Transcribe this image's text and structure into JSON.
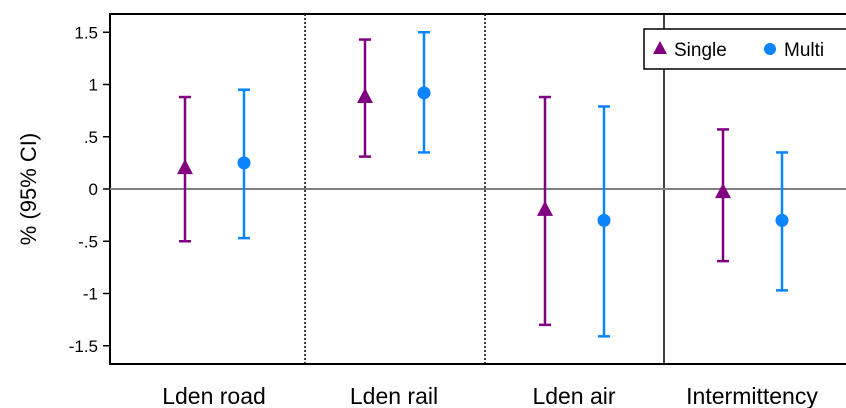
{
  "chart_data": {
    "type": "errorbar",
    "ylabel": "% (95% CI)",
    "ylim": [
      -1.65,
      1.65
    ],
    "yticks": [
      {
        "value": 1.5,
        "label": "1.5"
      },
      {
        "value": 1,
        "label": "1"
      },
      {
        "value": 0.5,
        "label": ".5"
      },
      {
        "value": 0,
        "label": "0"
      },
      {
        "value": -0.5,
        "label": "-.5"
      },
      {
        "value": -1,
        "label": "-1"
      },
      {
        "value": -1.5,
        "label": "-1.5"
      }
    ],
    "categories": [
      "Lden road",
      "Lden rail",
      "Lden air",
      "Intermittency"
    ],
    "reference_line": 0,
    "legend": {
      "position": "top-right"
    },
    "series": [
      {
        "name": "Single",
        "marker": "triangle",
        "color": "#800080",
        "points": [
          {
            "estimate": 0.2,
            "lower": -0.5,
            "upper": 0.88
          },
          {
            "estimate": 0.88,
            "lower": 0.31,
            "upper": 1.43
          },
          {
            "estimate": -0.2,
            "lower": -1.3,
            "upper": 0.88
          },
          {
            "estimate": -0.03,
            "lower": -0.69,
            "upper": 0.57
          }
        ]
      },
      {
        "name": "Multi",
        "marker": "circle",
        "color": "#0a84ff",
        "points": [
          {
            "estimate": 0.25,
            "lower": -0.47,
            "upper": 0.95
          },
          {
            "estimate": 0.92,
            "lower": 0.35,
            "upper": 1.5
          },
          {
            "estimate": -0.3,
            "lower": -1.41,
            "upper": 0.79
          },
          {
            "estimate": -0.3,
            "lower": -0.97,
            "upper": 0.35
          }
        ]
      }
    ]
  }
}
